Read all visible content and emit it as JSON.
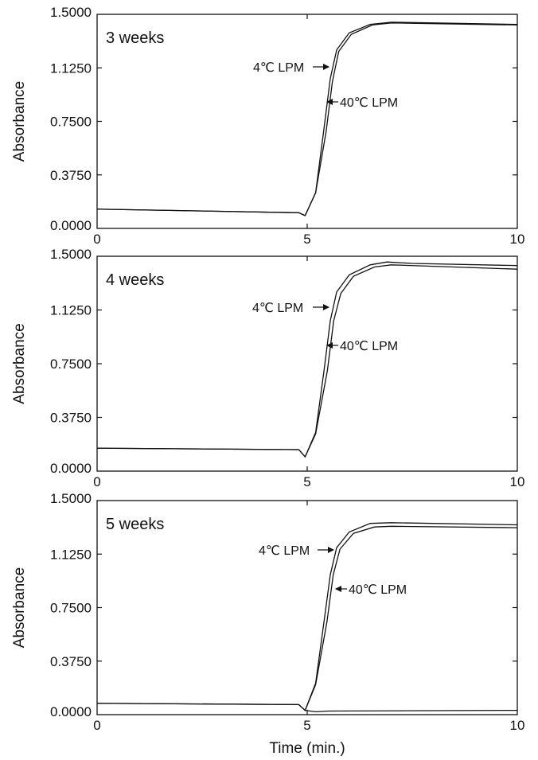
{
  "chart_data": [
    {
      "type": "line",
      "panel_label": "3 weeks",
      "ylabel": "Absorbance",
      "xlabel": "",
      "xlim": [
        0,
        10
      ],
      "ylim": [
        0,
        1.5
      ],
      "x_ticks": [
        "0",
        "5",
        "10"
      ],
      "y_ticks": [
        "0.0000",
        "0.3750",
        "0.7500",
        "1.1250",
        "1.5000"
      ],
      "grid": false,
      "series": [
        {
          "values": [
            [
              0,
              0.135
            ],
            [
              4.8,
              0.11
            ],
            [
              4.95,
              0.09
            ],
            [
              5.2,
              0.25
            ],
            [
              5.4,
              0.7
            ],
            [
              5.55,
              1.05
            ],
            [
              5.7,
              1.25
            ],
            [
              6.0,
              1.37
            ],
            [
              6.5,
              1.43
            ],
            [
              7.0,
              1.445
            ],
            [
              10,
              1.43
            ]
          ]
        },
        {
          "values": [
            [
              0,
              0.135
            ],
            [
              4.8,
              0.11
            ],
            [
              4.95,
              0.09
            ],
            [
              5.2,
              0.25
            ],
            [
              5.45,
              0.68
            ],
            [
              5.6,
              1.03
            ],
            [
              5.75,
              1.24
            ],
            [
              6.05,
              1.36
            ],
            [
              6.55,
              1.425
            ],
            [
              7.0,
              1.44
            ],
            [
              10,
              1.425
            ]
          ]
        }
      ],
      "annotations": [
        {
          "text": "4℃ LPM",
          "arrow": "right"
        },
        {
          "text": "40℃ LPM",
          "arrow": "left"
        }
      ]
    },
    {
      "type": "line",
      "panel_label": "4 weeks",
      "ylabel": "Absorbance",
      "xlabel": "",
      "xlim": [
        0,
        10
      ],
      "ylim": [
        0,
        1.5
      ],
      "x_ticks": [
        "0",
        "5",
        "10"
      ],
      "y_ticks": [
        "0.0000",
        "0.3750",
        "0.7500",
        "1.1250",
        "1.5000"
      ],
      "grid": false,
      "series": [
        {
          "values": [
            [
              0,
              0.16
            ],
            [
              4.8,
              0.15
            ],
            [
              4.95,
              0.1
            ],
            [
              5.2,
              0.27
            ],
            [
              5.4,
              0.7
            ],
            [
              5.55,
              1.05
            ],
            [
              5.7,
              1.25
            ],
            [
              6.0,
              1.37
            ],
            [
              6.5,
              1.44
            ],
            [
              6.9,
              1.46
            ],
            [
              7.5,
              1.45
            ],
            [
              10,
              1.435
            ]
          ]
        },
        {
          "values": [
            [
              0,
              0.16
            ],
            [
              4.8,
              0.15
            ],
            [
              4.95,
              0.1
            ],
            [
              5.2,
              0.26
            ],
            [
              5.48,
              0.7
            ],
            [
              5.63,
              1.05
            ],
            [
              5.8,
              1.24
            ],
            [
              6.1,
              1.36
            ],
            [
              6.6,
              1.425
            ],
            [
              7.0,
              1.44
            ],
            [
              10,
              1.41
            ]
          ]
        }
      ],
      "annotations": [
        {
          "text": "4℃ LPM",
          "arrow": "right"
        },
        {
          "text": "40℃ LPM",
          "arrow": "left"
        }
      ]
    },
    {
      "type": "line",
      "panel_label": "5 weeks",
      "ylabel": "Absorbance",
      "xlabel": "Time (min.)",
      "xlim": [
        0,
        10
      ],
      "ylim": [
        0,
        1.5
      ],
      "x_ticks": [
        "0",
        "5",
        "10"
      ],
      "y_ticks": [
        "0.0000",
        "0.3750",
        "0.7500",
        "1.1250",
        "1.5000"
      ],
      "grid": false,
      "series": [
        {
          "values": [
            [
              0,
              0.08
            ],
            [
              4.8,
              0.07
            ],
            [
              4.95,
              0.03
            ],
            [
              5.2,
              0.22
            ],
            [
              5.4,
              0.65
            ],
            [
              5.55,
              0.98
            ],
            [
              5.7,
              1.17
            ],
            [
              6.0,
              1.28
            ],
            [
              6.5,
              1.34
            ],
            [
              7.0,
              1.345
            ],
            [
              10,
              1.33
            ]
          ]
        },
        {
          "values": [
            [
              0,
              0.08
            ],
            [
              4.8,
              0.07
            ],
            [
              4.95,
              0.03
            ],
            [
              5.2,
              0.21
            ],
            [
              5.47,
              0.65
            ],
            [
              5.62,
              0.98
            ],
            [
              5.78,
              1.16
            ],
            [
              6.1,
              1.27
            ],
            [
              6.6,
              1.315
            ],
            [
              7.0,
              1.32
            ],
            [
              10,
              1.31
            ]
          ]
        },
        {
          "values": [
            [
              4.95,
              0.03
            ],
            [
              5.2,
              0.02
            ],
            [
              5.5,
              0.025
            ],
            [
              10,
              0.03
            ]
          ]
        }
      ],
      "annotations": [
        {
          "text": "4℃ LPM",
          "arrow": "right"
        },
        {
          "text": "40℃ LPM",
          "arrow": "left"
        }
      ]
    }
  ]
}
